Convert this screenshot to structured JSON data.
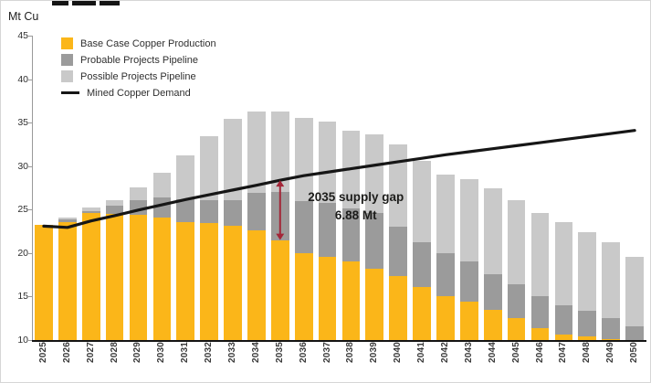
{
  "page": {
    "y_axis_title": "Mt Cu"
  },
  "chart_data": {
    "type": "bar",
    "stacked": true,
    "grid": false,
    "legend_position": "top-left",
    "ylabel": "Mt Cu",
    "ylim": [
      10,
      45
    ],
    "yticks": [
      10,
      15,
      20,
      25,
      30,
      35,
      40,
      45
    ],
    "categories": [
      "2025",
      "2026",
      "2027",
      "2028",
      "2029",
      "2030",
      "2031",
      "2032",
      "2033",
      "2034",
      "2035",
      "2036",
      "2037",
      "2038",
      "2039",
      "2040",
      "2041",
      "2042",
      "2043",
      "2044",
      "2045",
      "2046",
      "2047",
      "2048",
      "2049",
      "2050"
    ],
    "series": [
      {
        "name": "Base Case Copper Production",
        "type": "bar",
        "color": "#FBB619",
        "values": [
          23.2,
          23.6,
          24.6,
          24.5,
          24.4,
          24.1,
          23.6,
          23.5,
          23.1,
          22.6,
          21.5,
          20.0,
          19.6,
          19.0,
          18.2,
          17.4,
          16.1,
          15.0,
          14.4,
          13.5,
          12.5,
          11.4,
          10.6,
          10.4,
          10.1,
          9.9
        ]
      },
      {
        "name": "Probable Projects Pipeline",
        "type": "bar",
        "color": "#9B9B9B",
        "values": [
          0.0,
          0.3,
          0.2,
          1.0,
          1.7,
          2.3,
          2.6,
          2.6,
          3.0,
          4.3,
          5.5,
          6.0,
          6.2,
          6.1,
          6.4,
          5.6,
          5.1,
          5.0,
          4.6,
          4.1,
          3.9,
          3.6,
          3.4,
          3.0,
          2.4,
          1.7
        ]
      },
      {
        "name": "Possible Projects Pipeline",
        "type": "bar",
        "color": "#C9C9C9",
        "values": [
          0.0,
          0.2,
          0.4,
          0.6,
          1.5,
          2.8,
          5.0,
          7.3,
          9.3,
          9.4,
          9.3,
          9.5,
          9.3,
          9.0,
          9.0,
          9.5,
          9.4,
          9.0,
          9.5,
          9.9,
          9.7,
          9.6,
          9.6,
          9.0,
          8.7,
          8.0
        ]
      },
      {
        "name": "Mined Copper Demand",
        "type": "line",
        "color": "#161616",
        "values": [
          23.1,
          22.95,
          23.7,
          24.3,
          24.95,
          25.55,
          26.15,
          26.7,
          27.25,
          27.8,
          28.38,
          28.9,
          29.3,
          29.7,
          30.1,
          30.5,
          30.9,
          31.3,
          31.65,
          32.0,
          32.35,
          32.7,
          33.05,
          33.4,
          33.75,
          34.1
        ]
      }
    ],
    "annotation": {
      "text": [
        "2035 supply gap",
        "6.88 Mt"
      ],
      "year": "2035",
      "from": 21.5,
      "to": 28.38,
      "gap_value": "6.88 Mt",
      "color": "#A32638"
    }
  }
}
